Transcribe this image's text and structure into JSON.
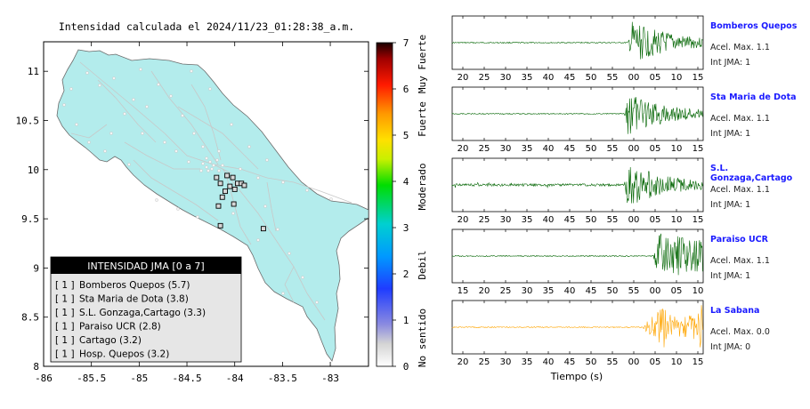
{
  "map": {
    "title": "Intensidad calculada el 2024/11/23_01:28:38_a.m.",
    "x_ticks": [
      "-86",
      "-85.5",
      "-85",
      "-84.5",
      "-84",
      "-83.5",
      "-83"
    ],
    "y_ticks": [
      "11",
      "10.5",
      "10",
      "9.5",
      "9",
      "8.5",
      "8"
    ],
    "x_range": [
      -86,
      -82.6
    ],
    "y_range": [
      8,
      11.3
    ],
    "land_color": "#b3ecec",
    "legend": {
      "header": "INTENSIDAD JMA [0 a 7]",
      "entries": [
        {
          "level": "[ 1 ]",
          "label": "Bomberos Quepos (5.7)"
        },
        {
          "level": "[ 1 ]",
          "label": "Sta Maria de Dota (3.8)"
        },
        {
          "level": "[ 1 ]",
          "label": "S.L. Gonzaga,Cartago (3.3)"
        },
        {
          "level": "[ 1 ]",
          "label": "Paraiso UCR (2.8)"
        },
        {
          "level": "[ 1 ]",
          "label": "Cartago (3.2)"
        },
        {
          "level": "[ 1 ]",
          "label": "Hosp. Quepos (3.2)"
        }
      ]
    },
    "colorbar": {
      "ticks": [
        "0",
        "1",
        "2",
        "3",
        "4",
        "5",
        "6",
        "7"
      ],
      "labels": [
        "No sentido",
        "Debil",
        "Moderado",
        "Fuerte",
        "Muy Fuerte"
      ]
    }
  },
  "chart_data": [
    {
      "type": "scatter",
      "title": "Intensidad calculada el 2024/11/23_01:28:38_a.m.",
      "xlabel": "",
      "ylabel": "",
      "xlim": [
        -86,
        -82.6
      ],
      "ylim": [
        8,
        11.3
      ],
      "stations_marked": [
        {
          "lon": -84.02,
          "lat": 9.92
        },
        {
          "lon": -83.97,
          "lat": 9.86
        },
        {
          "lon": -84.05,
          "lat": 9.83
        },
        {
          "lon": -83.93,
          "lat": 9.86
        },
        {
          "lon": -84.15,
          "lat": 9.86
        },
        {
          "lon": -84.1,
          "lat": 9.78
        },
        {
          "lon": -84.0,
          "lat": 9.8
        },
        {
          "lon": -83.9,
          "lat": 9.84
        },
        {
          "lon": -84.13,
          "lat": 9.72
        },
        {
          "lon": -84.01,
          "lat": 9.65
        },
        {
          "lon": -84.17,
          "lat": 9.63
        },
        {
          "lon": -84.15,
          "lat": 9.43
        },
        {
          "lon": -83.7,
          "lat": 9.4
        },
        {
          "lon": -84.19,
          "lat": 9.92
        },
        {
          "lon": -84.08,
          "lat": 9.94
        }
      ]
    },
    {
      "type": "line",
      "station": "Bomberos Quepos",
      "x_ticks": [
        "20",
        "25",
        "30",
        "35",
        "40",
        "45",
        "50",
        "55",
        "00",
        "05",
        "10",
        "15"
      ],
      "acel_label": "Acel. Max. 1.1",
      "int_label": "Int JMA: 1",
      "color": "#006400",
      "onset_s": 59.5
    },
    {
      "type": "line",
      "station": "Sta Maria de Dota",
      "x_ticks": [
        "20",
        "25",
        "30",
        "35",
        "40",
        "45",
        "50",
        "55",
        "00",
        "05",
        "10",
        "15"
      ],
      "acel_label": "Acel. Max. 1.1",
      "int_label": "Int JMA: 1",
      "color": "#006400",
      "onset_s": 58.5
    },
    {
      "type": "line",
      "station": "S.L. Gonzaga,Cartago",
      "x_ticks": [
        "20",
        "25",
        "30",
        "35",
        "40",
        "45",
        "50",
        "55",
        "00",
        "05",
        "10",
        "15"
      ],
      "acel_label": "Acel. Max. 1.1",
      "int_label": "Int JMA: 1",
      "color": "#006400",
      "onset_s": 58.5
    },
    {
      "type": "line",
      "station": "Paraiso UCR",
      "x_ticks": [
        "15",
        "20",
        "25",
        "30",
        "35",
        "40",
        "45",
        "50",
        "55",
        "00",
        "05",
        "10"
      ],
      "acel_label": "Acel. Max. 1.1",
      "int_label": "Int JMA: 1",
      "color": "#006400",
      "onset_s": 60.5
    },
    {
      "type": "line",
      "station": "La Sabana",
      "x_ticks": [
        "20",
        "25",
        "30",
        "35",
        "40",
        "45",
        "50",
        "55",
        "00",
        "05",
        "10",
        "15"
      ],
      "acel_label": "Acel. Max. 0.0",
      "int_label": "Int JMA: 0",
      "color": "#ffa500",
      "onset_s": 63.0
    }
  ],
  "seismo_xlabel": "Tiempo (s)"
}
